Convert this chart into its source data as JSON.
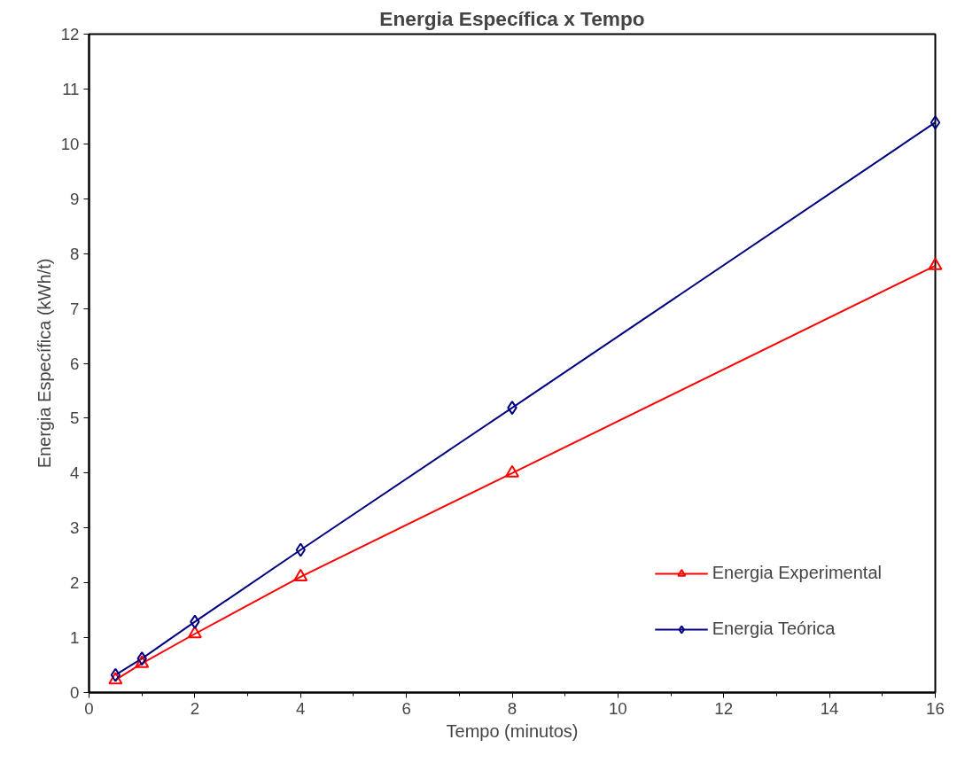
{
  "chart_data": {
    "type": "line",
    "title": "Energia Específica x Tempo",
    "xlabel": "Tempo (minutos)",
    "ylabel": "Energia Específica (kWh/t)",
    "x": [
      0.5,
      1,
      2,
      4,
      8,
      16
    ],
    "series": [
      {
        "name": "Energia Experimental",
        "color": "#ff0000",
        "marker": "triangle",
        "values": [
          0.23,
          0.53,
          1.07,
          2.11,
          4.0,
          7.78
        ]
      },
      {
        "name": "Energia Teórica",
        "color": "#000080",
        "marker": "diamond",
        "values": [
          0.32,
          0.62,
          1.29,
          2.6,
          5.19,
          10.39
        ]
      }
    ],
    "xlim": [
      0,
      16
    ],
    "xticks": [
      0,
      2,
      4,
      6,
      8,
      10,
      12,
      14,
      16
    ],
    "ylim": [
      0,
      12
    ],
    "yticks": [
      0,
      1,
      2,
      3,
      4,
      5,
      6,
      7,
      8,
      9,
      10,
      11,
      12
    ],
    "grid": false,
    "legend": "bottom right",
    "line_style": "solid"
  }
}
